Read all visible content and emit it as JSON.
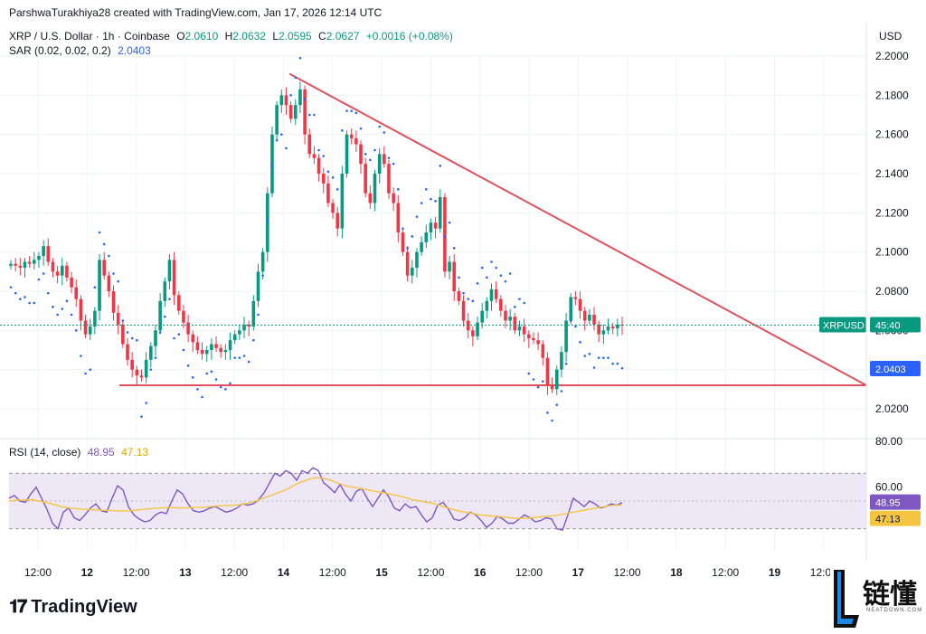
{
  "header": {
    "credit": "ParshwaTurakhiya28 created with TradingView.com, Jan 17, 2026 12:14 UTC",
    "symbol": "XRP / U.S. Dollar · 1h · Coinbase",
    "o_label": "O",
    "o_value": "2.0610",
    "h_label": "H",
    "h_value": "2.0632",
    "l_label": "L",
    "l_value": "2.0595",
    "c_label": "C",
    "c_value": "2.0627",
    "change": "+0.0016 (+0.08%)",
    "sar_label": "SAR (0.02, 0.02, 0.2)",
    "sar_value": "2.0403"
  },
  "price_axis": {
    "currency": "USD"
  },
  "rsi_header": {
    "label": "RSI (14, close)",
    "value": "48.95",
    "ma_value": "47.13"
  },
  "badges": {
    "symbol_tag": "XRPUSD",
    "countdown": "45:40",
    "sar_tag": "2.0403",
    "rsi_tag": "48.95",
    "rsi_ma_tag": "47.13"
  },
  "branding": {
    "logo_text": "TradingView",
    "watermark": "链懂",
    "watermark_sub": "NEATDOWN.COM"
  },
  "colors": {
    "up": "#089981",
    "down": "#f23645",
    "sar": "#2962ff",
    "trendline": "#e0515e",
    "rsi_line": "#7e57c2",
    "rsi_ma": "#f5c542",
    "rsi_band": "#ede7f6",
    "last_price": "#089981"
  },
  "chart_data": [
    {
      "type": "candlestick",
      "title": "XRP / U.S. Dollar · 1h · Coinbase",
      "ylabel": "USD",
      "ylim": [
        2.018,
        2.206
      ],
      "y_ticks": [
        "2.0200",
        "2.0400",
        "2.0600",
        "2.0800",
        "2.1000",
        "2.1200",
        "2.1400",
        "2.1600",
        "2.1800",
        "2.2000"
      ],
      "x_ticks": [
        "12:00",
        "12",
        "12:00",
        "13",
        "12:00",
        "14",
        "12:00",
        "15",
        "12:00",
        "16",
        "12:00",
        "17",
        "12:00",
        "18",
        "12:00",
        "19",
        "12:00"
      ],
      "last_price": 2.0627,
      "close_path": [
        2.094,
        2.093,
        2.092,
        2.095,
        2.094,
        2.096,
        2.098,
        2.103,
        2.095,
        2.09,
        2.088,
        2.093,
        2.087,
        2.082,
        2.076,
        2.065,
        2.058,
        2.062,
        2.07,
        2.096,
        2.088,
        2.08,
        2.069,
        2.063,
        2.053,
        2.045,
        2.04,
        2.037,
        2.036,
        2.045,
        2.052,
        2.06,
        2.075,
        2.085,
        2.096,
        2.078,
        2.07,
        2.064,
        2.058,
        2.054,
        2.05,
        2.048,
        2.05,
        2.053,
        2.051,
        2.049,
        2.05,
        2.055,
        2.058,
        2.06,
        2.063,
        2.062,
        2.075,
        2.09,
        2.1,
        2.13,
        2.16,
        2.175,
        2.18,
        2.175,
        2.168,
        2.175,
        2.183,
        2.16,
        2.15,
        2.148,
        2.14,
        2.135,
        2.125,
        2.12,
        2.112,
        2.14,
        2.16,
        2.158,
        2.155,
        2.145,
        2.13,
        2.125,
        2.14,
        2.15,
        2.145,
        2.13,
        2.125,
        2.11,
        2.1,
        2.088,
        2.092,
        2.1,
        2.105,
        2.11,
        2.115,
        2.112,
        2.128,
        2.09,
        2.095,
        2.08,
        2.075,
        2.065,
        2.06,
        2.057,
        2.064,
        2.07,
        2.075,
        2.081,
        2.076,
        2.07,
        2.065,
        2.067,
        2.06,
        2.062,
        2.058,
        2.056,
        2.055,
        2.053,
        2.046,
        2.032,
        2.03,
        2.04,
        2.049,
        2.065,
        2.077,
        2.076,
        2.07,
        2.065,
        2.068,
        2.063,
        2.058,
        2.06,
        2.062,
        2.061,
        2.063,
        2.0627
      ],
      "sar_value": 2.0403,
      "annotations": [
        "descending triangle: resistance trendline from ~2.191 (Jan 14) to ~2.032; support line at ~2.032"
      ]
    },
    {
      "type": "line",
      "title": "RSI (14, close)",
      "ylim": [
        20,
        80
      ],
      "y_ticks": [
        "60.00"
      ],
      "top_tick": "80.00",
      "bands": [
        30,
        70
      ],
      "rsi_path": [
        52,
        54,
        50,
        49,
        55,
        60,
        52,
        44,
        34,
        30,
        42,
        45,
        38,
        36,
        40,
        45,
        48,
        43,
        42,
        52,
        61,
        58,
        46,
        40,
        37,
        35,
        36,
        40,
        42,
        41,
        50,
        58,
        55,
        48,
        43,
        42,
        43,
        45,
        46,
        44,
        42,
        43,
        45,
        48,
        47,
        48,
        51,
        56,
        63,
        70,
        68,
        72,
        70,
        65,
        72,
        70,
        74,
        72,
        63,
        60,
        56,
        62,
        55,
        50,
        57,
        59,
        52,
        46,
        52,
        58,
        53,
        45,
        43,
        48,
        45,
        46,
        40,
        35,
        38,
        47,
        49,
        44,
        37,
        36,
        38,
        42,
        40,
        36,
        31,
        34,
        39,
        37,
        34,
        34,
        37,
        40,
        38,
        35,
        36,
        38,
        37,
        30,
        29,
        40,
        52,
        49,
        46,
        50,
        48,
        45,
        46,
        48,
        47,
        48.95
      ],
      "ma_path": [
        50,
        50.5,
        50.8,
        51,
        50,
        49,
        47.5,
        46,
        45,
        44.5,
        44,
        43.8,
        43.5,
        43.3,
        43,
        42.8,
        43,
        43.5,
        44,
        44.5,
        45,
        45.2,
        45.3,
        45,
        45.2,
        45.4,
        45.5,
        46,
        46.5,
        46.8,
        47,
        47.5,
        48.5,
        50,
        52,
        54,
        56,
        58,
        61,
        63.5,
        65.5,
        67,
        66.5,
        65,
        63,
        61,
        60,
        59,
        58,
        57,
        56,
        55,
        54,
        52.5,
        51,
        50,
        49,
        48,
        46,
        44.5,
        43,
        42,
        41,
        40,
        39.5,
        39,
        38.5,
        38,
        37.5,
        37.5,
        38,
        38.5,
        39,
        39.5,
        40.5,
        41.5,
        42.5,
        43.5,
        44.5,
        45.5,
        46.3,
        47,
        47.13
      ],
      "current": 48.95,
      "ma_current": 47.13
    }
  ]
}
